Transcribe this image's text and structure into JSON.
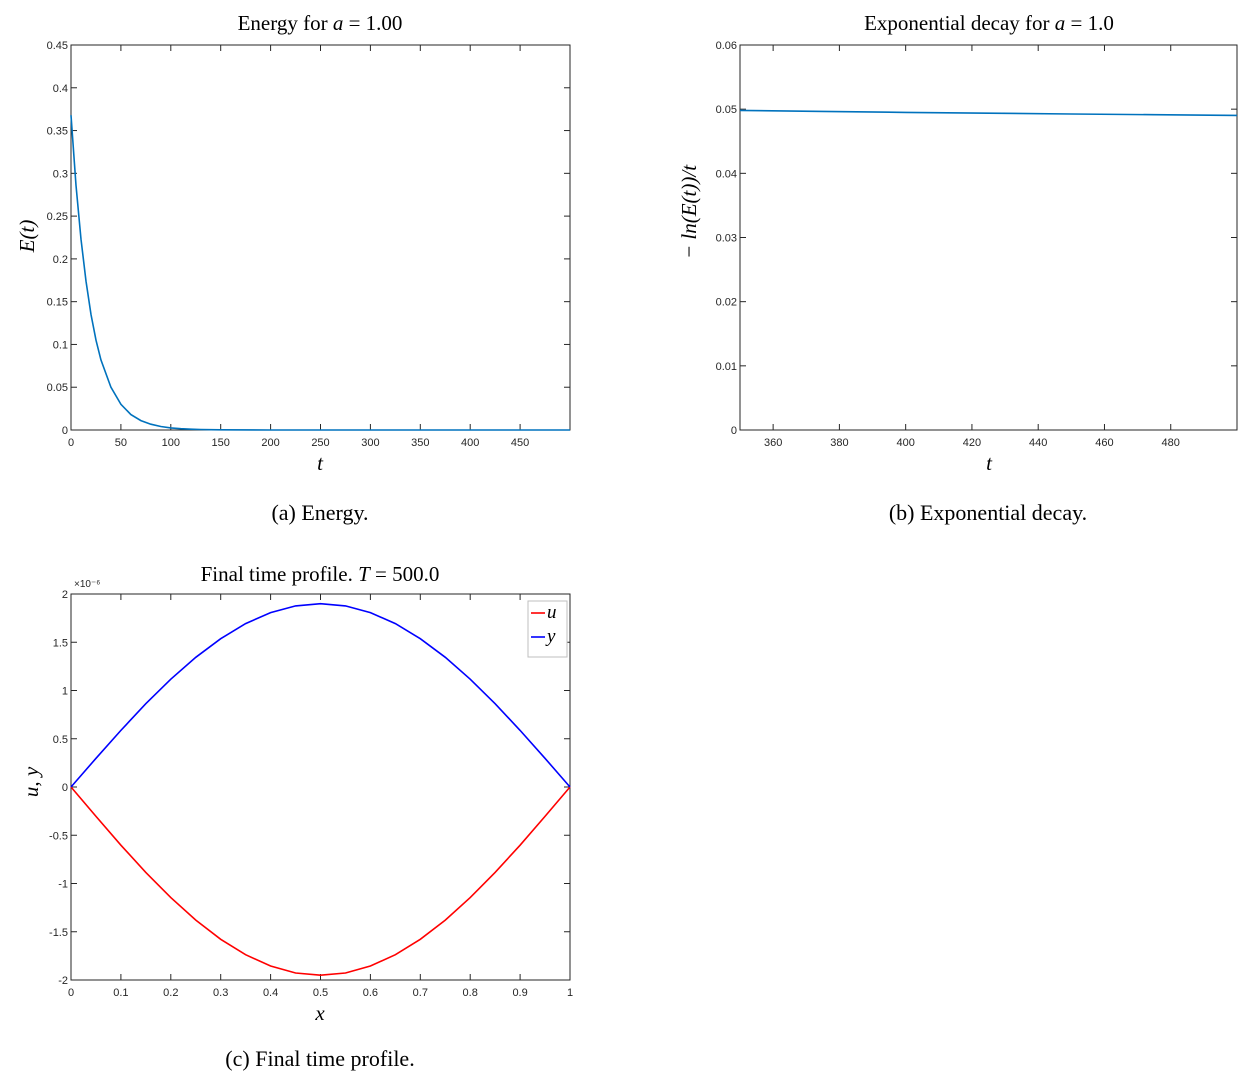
{
  "chart_data": [
    {
      "id": "a",
      "type": "line",
      "title": "Energy for a = 1.00",
      "xlabel": "t",
      "ylabel": "E(t)",
      "caption": "(a) Energy.",
      "xlim": [
        0,
        500
      ],
      "ylim": [
        0,
        0.45
      ],
      "xticks": [
        0,
        50,
        100,
        150,
        200,
        250,
        300,
        350,
        400,
        450
      ],
      "yticks": [
        0,
        0.05,
        0.1,
        0.15,
        0.2,
        0.25,
        0.3,
        0.35,
        0.4,
        0.45
      ],
      "grid": false,
      "series": [
        {
          "color": "#0072BD",
          "x": [
            0,
            5,
            10,
            15,
            20,
            25,
            30,
            40,
            50,
            60,
            70,
            80,
            90,
            100,
            110,
            120,
            130,
            140,
            150,
            200,
            250,
            300,
            350,
            400,
            450,
            500
          ],
          "y": [
            0.368,
            0.286,
            0.223,
            0.174,
            0.135,
            0.105,
            0.082,
            0.05,
            0.03,
            0.018,
            0.011,
            0.0068,
            0.0041,
            0.0025,
            0.0015,
            0.0009,
            0.0006,
            0.0003,
            0.0002,
            0,
            0,
            0,
            0,
            0,
            0,
            0
          ]
        }
      ]
    },
    {
      "id": "b",
      "type": "line",
      "title": "Exponential decay for a = 1.0",
      "xlabel": "t",
      "ylabel": "− ln(E(t))/t",
      "caption": "(b) Exponential decay.",
      "xlim": [
        350,
        500
      ],
      "ylim": [
        0,
        0.06
      ],
      "xticks": [
        360,
        380,
        400,
        420,
        440,
        460,
        480
      ],
      "yticks": [
        0,
        0.01,
        0.02,
        0.03,
        0.04,
        0.05,
        0.06
      ],
      "grid": false,
      "series": [
        {
          "color": "#0072BD",
          "x": [
            350,
            375,
            400,
            425,
            450,
            475,
            500
          ],
          "y": [
            0.0498,
            0.04965,
            0.0495,
            0.04937,
            0.04925,
            0.04914,
            0.04903
          ]
        }
      ]
    },
    {
      "id": "c",
      "type": "line",
      "title": "Final time profile. T = 500.0",
      "xlabel": "x",
      "ylabel": "u, y",
      "caption": "(c) Final time profile.",
      "y_exponent": "×10⁻⁶",
      "xlim": [
        0,
        1
      ],
      "ylim": [
        -2,
        2
      ],
      "xticks": [
        0,
        0.1,
        0.2,
        0.3,
        0.4,
        0.5,
        0.6,
        0.7,
        0.8,
        0.9,
        1
      ],
      "yticks": [
        -2,
        -1.5,
        -1,
        -0.5,
        0,
        0.5,
        1,
        1.5,
        2
      ],
      "grid": false,
      "legend": "top-right",
      "series": [
        {
          "name": "u",
          "color": "#FF0000",
          "x": [
            0,
            0.05,
            0.1,
            0.15,
            0.2,
            0.25,
            0.3,
            0.35,
            0.4,
            0.45,
            0.5,
            0.55,
            0.6,
            0.65,
            0.7,
            0.75,
            0.8,
            0.85,
            0.9,
            0.95,
            1
          ],
          "y": [
            0,
            -0.305,
            -0.603,
            -0.885,
            -1.146,
            -1.379,
            -1.578,
            -1.738,
            -1.855,
            -1.927,
            -1.95,
            -1.927,
            -1.855,
            -1.738,
            -1.578,
            -1.379,
            -1.146,
            -0.885,
            -0.603,
            -0.305,
            0
          ]
        },
        {
          "name": "y",
          "color": "#0000FF",
          "x": [
            0,
            0.05,
            0.1,
            0.15,
            0.2,
            0.25,
            0.3,
            0.35,
            0.4,
            0.45,
            0.5,
            0.55,
            0.6,
            0.65,
            0.7,
            0.75,
            0.8,
            0.85,
            0.9,
            0.95,
            1
          ],
          "y": [
            0,
            0.297,
            0.587,
            0.863,
            1.117,
            1.344,
            1.537,
            1.693,
            1.807,
            1.877,
            1.9,
            1.877,
            1.807,
            1.693,
            1.537,
            1.344,
            1.117,
            0.863,
            0.587,
            0.297,
            0
          ]
        }
      ]
    }
  ]
}
